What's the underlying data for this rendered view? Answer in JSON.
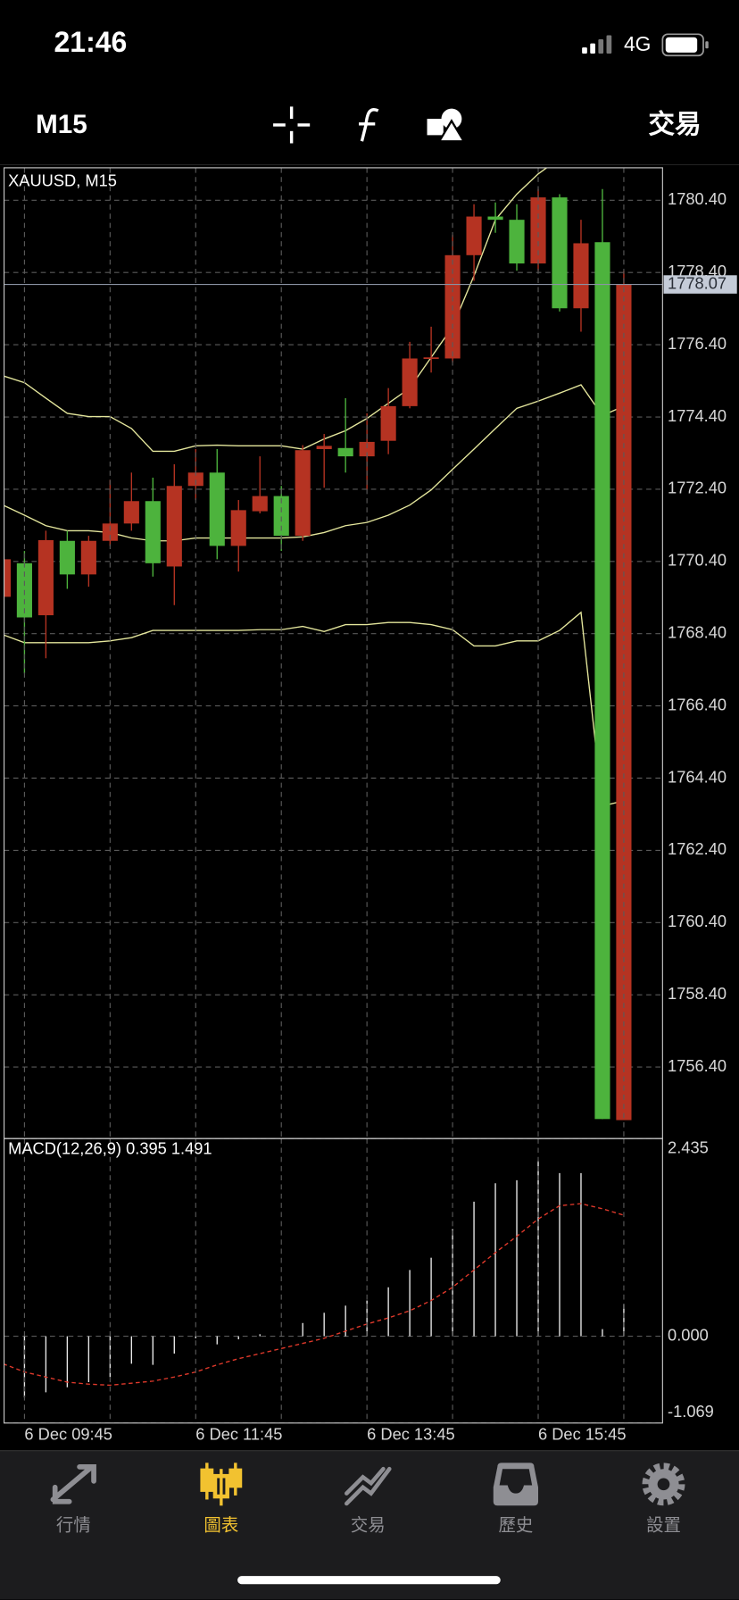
{
  "status_bar": {
    "time": "21:46",
    "network": "4G"
  },
  "toolbar": {
    "timeframe": "M15",
    "trade_button": "交易"
  },
  "chart_data": [
    {
      "type": "candlestick",
      "title": "XAUUSD, M15",
      "open": [
        1770.46,
        1768.85,
        1770.99,
        1770.04,
        1770.97,
        1771.45,
        1772.07,
        1770.35,
        1772.49,
        1772.86,
        1770.83,
        1771.82,
        1772.21,
        1771.11,
        1773.48,
        1773.6,
        1773.31,
        1773.71,
        1774.7,
        1776.02,
        1776.05,
        1778.88,
        1779.95,
        1779.86,
        1778.65,
        1780.48,
        1777.41,
        1779.21,
        1754.96,
        1778.07
      ],
      "high": [
        1770.6,
        1770.69,
        1771.25,
        1771.25,
        1771.11,
        1772.66,
        1772.86,
        1772.72,
        1773.09,
        1773.51,
        1773.51,
        1772.1,
        1773.31,
        1772.49,
        1773.62,
        1773.93,
        1774.92,
        1774.5,
        1775.2,
        1776.48,
        1776.9,
        1779.44,
        1780.29,
        1780.34,
        1780.29,
        1780.71,
        1780.57,
        1779.86,
        1780.71,
        1778.45
      ],
      "low": [
        1769.3,
        1767.3,
        1767.72,
        1769.64,
        1769.7,
        1770.83,
        1771.25,
        1769.98,
        1769.19,
        1772.1,
        1770.46,
        1770.12,
        1771.73,
        1770.69,
        1770.97,
        1772.44,
        1772.86,
        1772.38,
        1773.37,
        1774.64,
        1775.63,
        1775.91,
        1778.17,
        1779.5,
        1778.45,
        1778.45,
        1777.32,
        1776.76,
        1754.96,
        1754.93
      ],
      "close": [
        1769.42,
        1770.35,
        1768.91,
        1770.97,
        1770.04,
        1770.97,
        1771.45,
        1772.07,
        1770.26,
        1772.49,
        1772.86,
        1770.83,
        1771.79,
        1772.21,
        1771.11,
        1773.51,
        1773.54,
        1773.31,
        1773.74,
        1774.7,
        1776.02,
        1776.02,
        1778.88,
        1779.95,
        1779.86,
        1778.65,
        1780.48,
        1777.41,
        1779.24,
        1754.93
      ],
      "up_color": "#4db33d",
      "down_color": "#b53322",
      "bands": {
        "color": "#e4e69c",
        "upper": [
          1775.54,
          1775.35,
          1774.92,
          1774.5,
          1774.41,
          1774.41,
          1774.08,
          1773.45,
          1773.45,
          1773.6,
          1773.62,
          1773.6,
          1773.6,
          1773.6,
          1773.51,
          1773.79,
          1774.02,
          1774.36,
          1774.78,
          1775.2,
          1776.05,
          1776.9,
          1778.31,
          1779.86,
          1780.57,
          1781.13,
          1781.56,
          null,
          null,
          null
        ],
        "middle": [
          1771.96,
          1771.68,
          1771.39,
          1771.25,
          1771.25,
          1771.2,
          1771.05,
          1770.97,
          1770.97,
          1771.05,
          1771.05,
          1771.05,
          1771.05,
          1771.05,
          1771.08,
          1771.2,
          1771.39,
          1771.48,
          1771.68,
          1771.96,
          1772.38,
          1772.95,
          1773.51,
          1774.08,
          1774.64,
          1774.84,
          1775.06,
          1775.29,
          1774.44,
          1774.7
        ],
        "lower": [
          1768.37,
          1768.15,
          1768.15,
          1768.15,
          1768.15,
          1768.2,
          1768.29,
          1768.49,
          1768.49,
          1768.49,
          1768.49,
          1768.49,
          1768.51,
          1768.51,
          1768.6,
          1768.46,
          1768.65,
          1768.65,
          1768.71,
          1768.71,
          1768.65,
          1768.51,
          1768.06,
          1768.06,
          1768.2,
          1768.2,
          1768.49,
          1768.99,
          1763.63,
          1763.77
        ]
      },
      "last_price": 1778.07,
      "ylim": [
        1754.42,
        1781.3
      ],
      "yticks": [
        {
          "value": 1780.4,
          "label": "1780.40"
        },
        {
          "value": 1778.4,
          "label": "1778.40"
        },
        {
          "value": 1776.4,
          "label": "1776.40"
        },
        {
          "value": 1774.4,
          "label": "1774.40"
        },
        {
          "value": 1772.4,
          "label": "1772.40"
        },
        {
          "value": 1770.4,
          "label": "1770.40"
        },
        {
          "value": 1768.4,
          "label": "1768.40"
        },
        {
          "value": 1766.4,
          "label": "1766.40"
        },
        {
          "value": 1764.4,
          "label": "1764.40"
        },
        {
          "value": 1762.4,
          "label": "1762.40"
        },
        {
          "value": 1760.4,
          "label": "1760.40"
        },
        {
          "value": 1758.4,
          "label": "1758.40"
        },
        {
          "value": 1756.4,
          "label": "1756.40"
        }
      ],
      "grid": true
    },
    {
      "type": "macd",
      "title": "MACD(12,26,9) 0.395 1.491",
      "categories": [
        null,
        "6 Dec 09:45",
        null,
        null,
        null,
        null,
        null,
        null,
        null,
        "6 Dec 11:45",
        null,
        null,
        null,
        null,
        null,
        null,
        null,
        "6 Dec 13:45",
        null,
        null,
        null,
        null,
        null,
        null,
        null,
        "6 Dec 15:45",
        null,
        null,
        null,
        null
      ],
      "values": [
        -0.377,
        -0.754,
        -0.691,
        -0.628,
        -0.565,
        -0.502,
        -0.339,
        -0.352,
        -0.214,
        -0.025,
        -0.1,
        -0.038,
        0.025,
        0.003,
        0.163,
        0.289,
        0.377,
        0.44,
        0.603,
        0.816,
        0.967,
        1.319,
        1.658,
        1.884,
        1.922,
        2.16,
        2.01,
        2.01,
        0.088,
        0.395
      ],
      "signal": [
        -0.339,
        -0.44,
        -0.502,
        -0.565,
        -0.59,
        -0.603,
        -0.578,
        -0.553,
        -0.502,
        -0.44,
        -0.352,
        -0.276,
        -0.214,
        -0.151,
        -0.088,
        -0.025,
        0.063,
        0.151,
        0.226,
        0.314,
        0.44,
        0.603,
        0.816,
        1.03,
        1.231,
        1.444,
        1.608,
        1.633,
        1.57,
        1.491
      ],
      "color": "#e8e8e8",
      "signal_color": "#e0392b",
      "ylim": [
        -1.069,
        2.435
      ],
      "yticks": [
        2.435,
        {
          "value": 0,
          "label": "0.000"
        },
        -1.069
      ],
      "grid": true
    }
  ],
  "tab_bar": {
    "tabs": [
      "行情",
      "圖表",
      "交易",
      "歷史",
      "設置"
    ],
    "active_tab": 1
  }
}
